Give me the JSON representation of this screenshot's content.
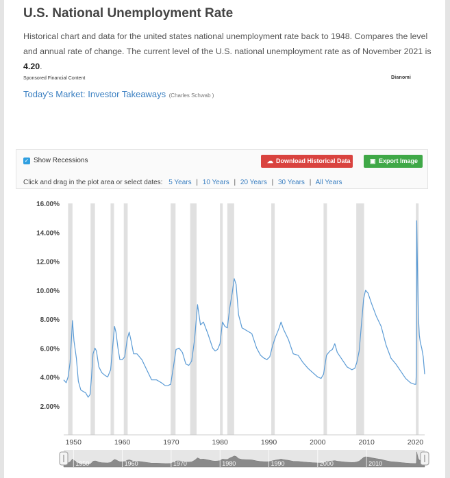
{
  "header": {
    "title": "U.S. National Unemployment Rate",
    "description": "Historical chart and data for the united states national unemployment rate back to 1948. Compares the level and annual rate of change. The current level of the U.S. national unemployment rate as of November 2021 is",
    "current_value": "4.20",
    "period_end": "."
  },
  "sponsored": {
    "label": "Sponsored Financial Content",
    "brand": "Dianomi",
    "link_text": "Today's Market: Investor Takeaways",
    "source": "(Charles Schwab )"
  },
  "controls": {
    "show_recessions_label": "Show Recessions",
    "show_recessions_checked": true,
    "download_label": "Download Historical Data",
    "export_label": "Export Image",
    "range_prompt": "Click and drag in the plot area or select dates:",
    "ranges": [
      "5 Years",
      "10 Years",
      "20 Years",
      "30 Years",
      "All Years"
    ],
    "separator": "|"
  },
  "colors": {
    "line": "#5b9bd5",
    "recession": "#e0e0e0",
    "download_button": "#d9433f",
    "export_button": "#3fa847",
    "link": "#3a7fc1"
  },
  "icons": {
    "checkbox": "check-icon",
    "download": "cloud-download-icon",
    "export": "image-icon"
  },
  "chart_data": {
    "type": "line",
    "title": "",
    "xlabel": "",
    "ylabel": "",
    "ylim": [
      0,
      16
    ],
    "xlim": [
      1948.0,
      2021.9
    ],
    "y_ticks": [
      "2.00%",
      "4.00%",
      "6.00%",
      "8.00%",
      "10.00%",
      "12.00%",
      "14.00%",
      "16.00%"
    ],
    "x_ticks": [
      "1950",
      "1960",
      "1970",
      "1980",
      "1990",
      "2000",
      "2010",
      "2020"
    ],
    "navigator_ticks": [
      "1950",
      "1960",
      "1970",
      "1980",
      "1990",
      "2000",
      "2010"
    ],
    "grid": false,
    "recessions": [
      [
        1948.9,
        1949.8
      ],
      [
        1953.5,
        1954.4
      ],
      [
        1957.6,
        1958.3
      ],
      [
        1960.3,
        1961.1
      ],
      [
        1969.9,
        1970.9
      ],
      [
        1973.9,
        1975.2
      ],
      [
        1980.0,
        1980.5
      ],
      [
        1981.5,
        1982.9
      ],
      [
        1990.5,
        1991.2
      ],
      [
        2001.2,
        2001.9
      ],
      [
        2007.9,
        2009.5
      ],
      [
        2020.1,
        2020.4
      ]
    ],
    "series": [
      {
        "name": "",
        "x": [
          1948.0,
          1948.5,
          1948.9,
          1949.3,
          1949.6,
          1949.8,
          1950.1,
          1950.6,
          1951.0,
          1951.5,
          1952.0,
          1952.5,
          1953.0,
          1953.4,
          1953.7,
          1954.0,
          1954.4,
          1954.7,
          1955.2,
          1955.8,
          1956.5,
          1957.0,
          1957.6,
          1958.0,
          1958.4,
          1958.7,
          1959.1,
          1959.5,
          1960.0,
          1960.5,
          1961.0,
          1961.4,
          1961.8,
          1962.3,
          1963.0,
          1964.0,
          1965.0,
          1966.0,
          1967.0,
          1968.0,
          1968.8,
          1969.3,
          1969.9,
          1970.5,
          1971.0,
          1971.6,
          1972.3,
          1973.0,
          1973.6,
          1974.2,
          1974.8,
          1975.4,
          1976.0,
          1976.6,
          1977.5,
          1978.5,
          1979.0,
          1979.5,
          1980.0,
          1980.5,
          1981.0,
          1981.5,
          1982.0,
          1982.5,
          1982.9,
          1983.3,
          1983.8,
          1984.5,
          1985.5,
          1986.5,
          1987.5,
          1988.3,
          1989.0,
          1989.6,
          1990.2,
          1990.8,
          1991.4,
          1992.0,
          1992.5,
          1993.0,
          1994.0,
          1995.0,
          1996.0,
          1997.0,
          1998.0,
          1999.0,
          2000.0,
          2000.7,
          2001.2,
          2001.8,
          2002.5,
          2003.0,
          2003.5,
          2004.0,
          2005.0,
          2006.0,
          2007.0,
          2007.6,
          2008.0,
          2008.5,
          2009.0,
          2009.4,
          2009.8,
          2010.3,
          2011.0,
          2012.0,
          2013.0,
          2014.0,
          2015.0,
          2016.0,
          2017.0,
          2018.0,
          2019.0,
          2019.8,
          2020.1,
          2020.2,
          2020.28,
          2020.35,
          2020.45,
          2020.6,
          2020.8,
          2021.0,
          2021.3,
          2021.6,
          2021.9
        ],
        "y": [
          3.8,
          3.6,
          4.0,
          5.0,
          6.7,
          7.9,
          6.5,
          5.3,
          3.7,
          3.1,
          3.0,
          2.9,
          2.6,
          2.8,
          4.0,
          5.6,
          6.0,
          5.8,
          4.7,
          4.3,
          4.1,
          4.0,
          4.5,
          6.0,
          7.5,
          7.1,
          6.0,
          5.2,
          5.2,
          5.4,
          6.6,
          7.1,
          6.5,
          5.6,
          5.6,
          5.2,
          4.5,
          3.8,
          3.8,
          3.6,
          3.4,
          3.4,
          3.5,
          4.8,
          5.9,
          6.0,
          5.7,
          4.9,
          4.8,
          5.1,
          6.6,
          9.0,
          7.6,
          7.8,
          7.0,
          6.0,
          5.8,
          5.9,
          6.3,
          7.8,
          7.5,
          7.4,
          8.8,
          9.8,
          10.8,
          10.4,
          8.3,
          7.4,
          7.2,
          7.0,
          6.0,
          5.5,
          5.3,
          5.2,
          5.4,
          6.2,
          6.8,
          7.3,
          7.8,
          7.3,
          6.6,
          5.6,
          5.5,
          5.0,
          4.6,
          4.3,
          4.0,
          3.9,
          4.2,
          5.5,
          5.8,
          5.9,
          6.3,
          5.7,
          5.2,
          4.7,
          4.5,
          4.6,
          5.0,
          5.8,
          7.8,
          9.4,
          10.0,
          9.8,
          9.1,
          8.2,
          7.5,
          6.2,
          5.3,
          4.9,
          4.4,
          3.9,
          3.6,
          3.5,
          3.5,
          4.4,
          14.8,
          13.3,
          11.1,
          8.4,
          6.9,
          6.4,
          6.0,
          5.4,
          4.2
        ]
      }
    ]
  }
}
